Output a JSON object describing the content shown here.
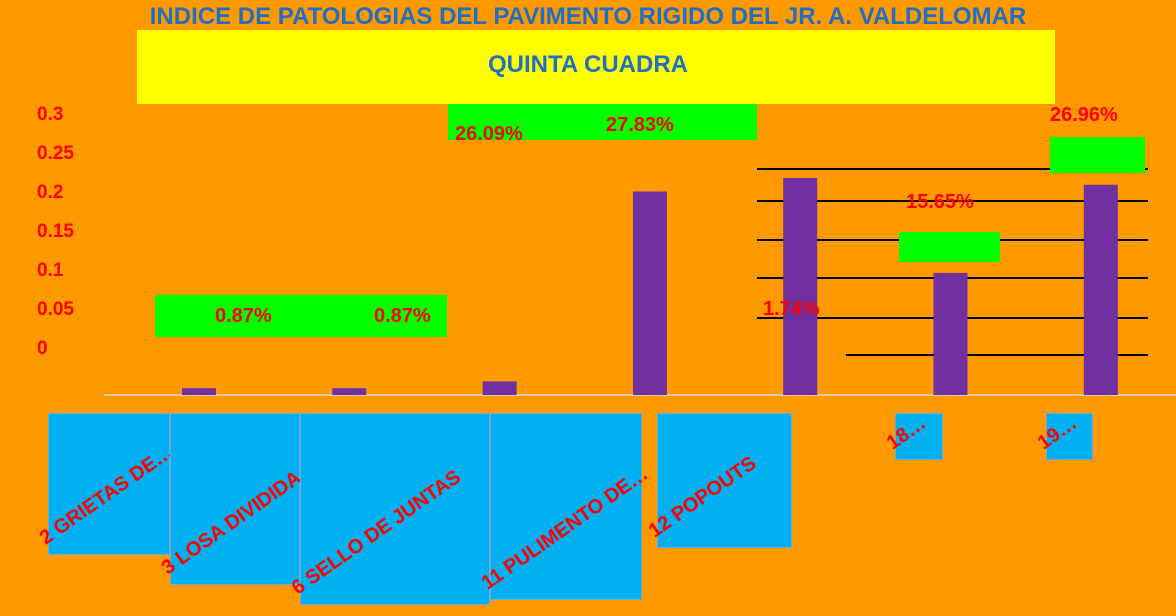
{
  "chart_data": {
    "type": "bar",
    "title": "INDICE DE PATOLOGIAS DEL PAVIMENTO RIGIDO DEL JR. A. VALDELOMAR  QUINTA CUADRA",
    "categories": [
      "2 GRIETAS DE…",
      "3 LOSA DIVIDIDA",
      "6 SELLO DE JUNTAS",
      "11 PULIMENTO DE…",
      "12 POPOUTS",
      "18…",
      "19…"
    ],
    "values": [
      0.0087,
      0.0087,
      0.0174,
      0.2609,
      0.2783,
      0.1565,
      0.2696
    ],
    "value_labels": [
      "0.87%",
      "0.87%",
      "1.74%",
      "26.09%",
      "27.83%",
      "15.65%",
      "26.96%"
    ],
    "color": "#7030a0",
    "ylim": [
      0,
      0.3
    ],
    "yticks": [
      0,
      0.05,
      0.1,
      0.15,
      0.2,
      0.25,
      0.3
    ]
  }
}
